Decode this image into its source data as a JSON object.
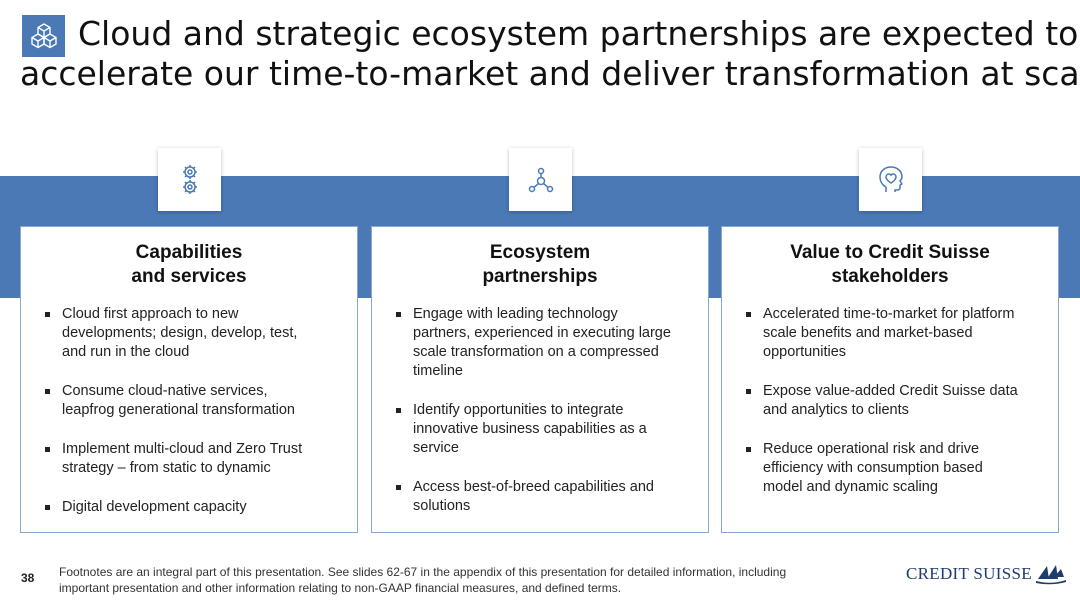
{
  "header": {
    "title_line1": "Cloud and strategic ecosystem partnerships are expected to",
    "title_line2": "accelerate our time-to-market and deliver transformation at scale",
    "icon": "cubes-icon"
  },
  "colors": {
    "accent_blue": "#4a79b5",
    "card_border": "#8aa9cf",
    "logo_blue": "#1f3b6e"
  },
  "columns": [
    {
      "icon": "gears-icon",
      "heading_line1": "Capabilities",
      "heading_line2": "and services",
      "bullets": [
        {
          "lines": [
            "Cloud first approach to new",
            "developments; design, develop, test,",
            "and run in the cloud"
          ]
        },
        {
          "lines": [
            "Consume cloud-native services,",
            "leapfrog generational transformation"
          ]
        },
        {
          "lines": [
            "Implement multi-cloud and Zero Trust",
            "strategy – from static to dynamic"
          ]
        },
        {
          "lines": [
            "Digital development capacity"
          ]
        }
      ]
    },
    {
      "icon": "network-nodes-icon",
      "heading_line1": "Ecosystem",
      "heading_line2": "partnerships",
      "bullets": [
        {
          "lines": [
            "Engage with leading technology",
            "partners, experienced in executing large",
            "scale transformation on a compressed",
            "timeline"
          ]
        },
        {
          "lines": [
            "Identify opportunities to integrate",
            "innovative business capabilities as a",
            "service"
          ]
        },
        {
          "lines": [
            "Access best-of-breed capabilities and",
            "solutions"
          ]
        }
      ]
    },
    {
      "icon": "head-heart-icon",
      "heading_line1": "Value to Credit Suisse",
      "heading_line2": "stakeholders",
      "bullets": [
        {
          "lines": [
            "Accelerated time-to-market for platform",
            "scale benefits and market-based",
            "opportunities"
          ]
        },
        {
          "lines": [
            "Expose value-added Credit Suisse data",
            "and analytics to clients"
          ]
        },
        {
          "lines": [
            "Reduce operational risk and drive",
            "efficiency with consumption based",
            "model and dynamic scaling"
          ]
        }
      ]
    }
  ],
  "footer": {
    "page_number": "38",
    "footnote_line1": "Footnotes are an integral part of this presentation. See slides 62-67 in the appendix of this presentation for detailed information, including",
    "footnote_line2": "important presentation and other information relating to non-GAAP financial measures, and defined terms.",
    "logo_text": "CREDIT SUISSE",
    "logo_icon": "sails-icon"
  }
}
